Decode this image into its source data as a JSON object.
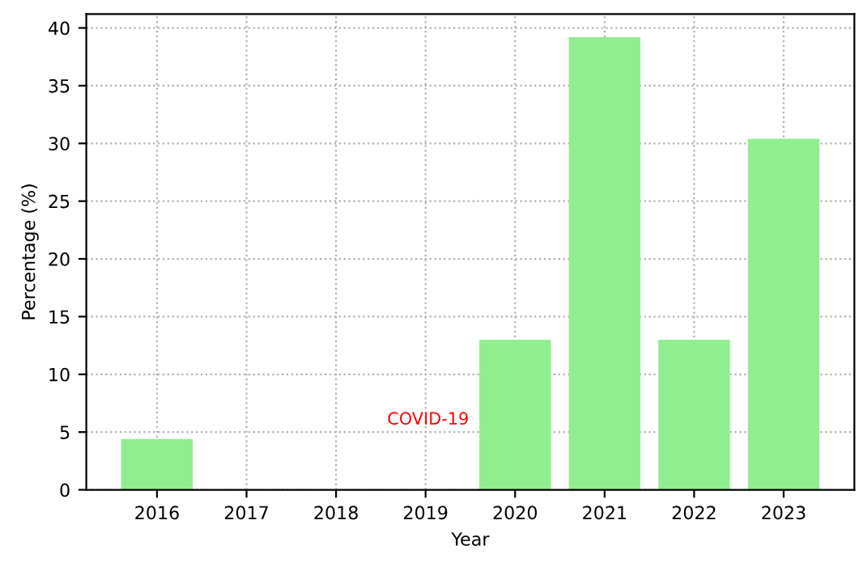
{
  "chart_data": {
    "type": "bar",
    "xlabel": "Year",
    "ylabel": "Percentage (%)",
    "categories": [
      "2016",
      "2017",
      "2018",
      "2019",
      "2020",
      "2021",
      "2022",
      "2023"
    ],
    "values": [
      4.4,
      0,
      0,
      0,
      13.0,
      39.2,
      13.0,
      30.4
    ],
    "color": "#90ee90",
    "ylim": [
      0,
      41.2
    ],
    "yticks": [
      0,
      5,
      10,
      15,
      20,
      25,
      30,
      35,
      40
    ],
    "grid": true,
    "annotations": [
      "COVID-19"
    ]
  }
}
